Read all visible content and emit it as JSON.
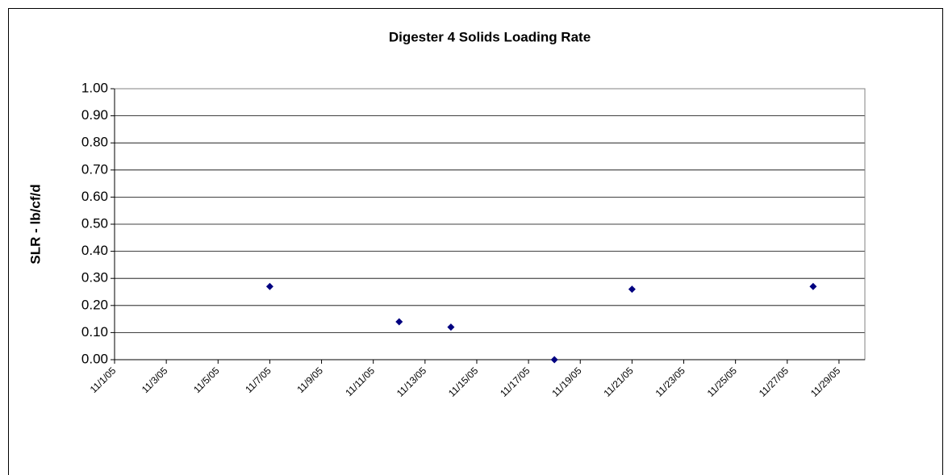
{
  "chart_data": {
    "type": "scatter",
    "title": "Digester 4 Solids Loading Rate",
    "y_label": "SLR - lb/cf/d",
    "x": [
      "2005-11-07",
      "2005-11-12",
      "2005-11-14",
      "2005-11-18",
      "2005-11-21",
      "2005-11-28"
    ],
    "series": [
      {
        "color": "#000080",
        "values": [
          0.27,
          0.14,
          0.12,
          0,
          0.26,
          0.27
        ]
      }
    ],
    "xlim": [
      "2005-11-01",
      "2005-11-30"
    ],
    "xticks": [
      {
        "value": "2005-11-01",
        "label": "11/1/05"
      },
      {
        "value": "2005-11-03",
        "label": "11/3/05"
      },
      {
        "value": "2005-11-05",
        "label": "11/5/05"
      },
      {
        "value": "2005-11-07",
        "label": "11/7/05"
      },
      {
        "value": "2005-11-09",
        "label": "11/9/05"
      },
      {
        "value": "2005-11-11",
        "label": "11/11/05"
      },
      {
        "value": "2005-11-13",
        "label": "11/13/05"
      },
      {
        "value": "2005-11-15",
        "label": "11/15/05"
      },
      {
        "value": "2005-11-17",
        "label": "11/17/05"
      },
      {
        "value": "2005-11-19",
        "label": "11/19/05"
      },
      {
        "value": "2005-11-21",
        "label": "11/21/05"
      },
      {
        "value": "2005-11-23",
        "label": "11/23/05"
      },
      {
        "value": "2005-11-25",
        "label": "11/25/05"
      },
      {
        "value": "2005-11-27",
        "label": "11/27/05"
      },
      {
        "value": "2005-11-29",
        "label": "11/29/05"
      }
    ],
    "ylim": [
      0,
      1
    ],
    "yticks": [
      {
        "value": 0,
        "label": "0.00"
      },
      {
        "value": 0.1,
        "label": "0.10"
      },
      {
        "value": 0.2,
        "label": "0.20"
      },
      {
        "value": 0.3,
        "label": "0.30"
      },
      {
        "value": 0.4,
        "label": "0.40"
      },
      {
        "value": 0.5,
        "label": "0.50"
      },
      {
        "value": 0.6,
        "label": "0.60"
      },
      {
        "value": 0.7,
        "label": "0.70"
      },
      {
        "value": 0.8,
        "label": "0.80"
      },
      {
        "value": 0.9,
        "label": "0.90"
      },
      {
        "value": 1,
        "label": "1.00"
      }
    ],
    "grid": true
  }
}
